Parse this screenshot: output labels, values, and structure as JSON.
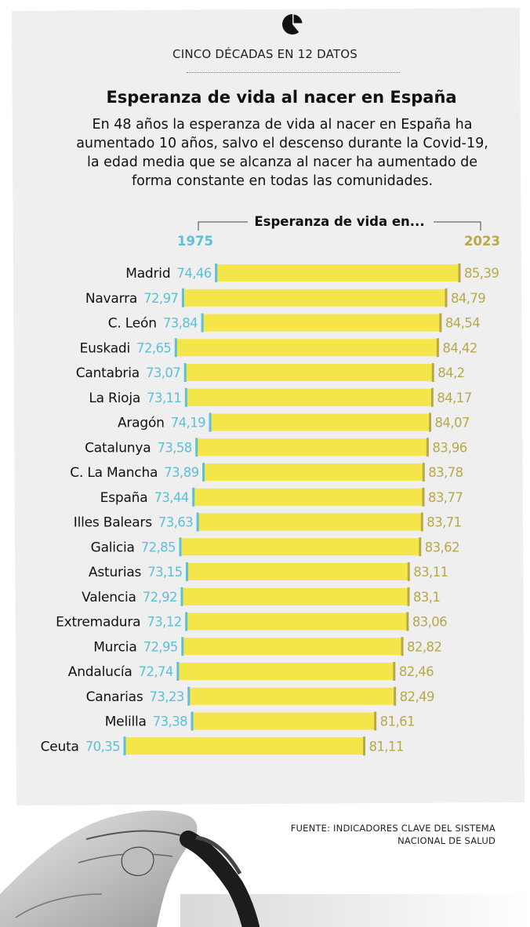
{
  "header": {
    "kicker": "CINCO DÉCADAS EN 12 DATOS",
    "title": "Esperanza de vida al nacer en España",
    "subtitle": "En 48 años la esperanza de vida al nacer en España ha aumentado 10 años, salvo el descenso durante la Covid-19, la edad media que se alcanza al nacer ha aumentado de forma constante en todas las comunidades."
  },
  "source": {
    "line1": "FUENTE: INDICADORES CLAVE DEL SISTEMA",
    "line2": "NACIONAL DE SALUD"
  },
  "colors": {
    "bar_fill": "#f3e54a",
    "start_marker": "#5cc0d8",
    "end_marker": "#b9a84a",
    "start_text": "#5cc0d8",
    "end_text": "#b9a84a",
    "label_text": "#111111"
  },
  "chart_data": {
    "type": "bar",
    "subtype": "range (dumbbell) bar",
    "title": "Esperanza de vida en...",
    "series": [
      {
        "name": "1975",
        "values": [
          74.46,
          72.97,
          73.84,
          72.65,
          73.07,
          73.11,
          74.19,
          73.58,
          73.89,
          73.44,
          73.63,
          72.85,
          73.15,
          72.92,
          73.12,
          72.95,
          72.74,
          73.23,
          73.38,
          70.35
        ]
      },
      {
        "name": "2023",
        "values": [
          85.39,
          84.79,
          84.54,
          84.42,
          84.2,
          84.17,
          84.07,
          83.96,
          83.78,
          83.77,
          83.71,
          83.62,
          83.11,
          83.1,
          83.06,
          82.82,
          82.46,
          82.49,
          81.61,
          81.11
        ]
      }
    ],
    "categories": [
      "Madrid",
      "Navarra",
      "C. León",
      "Euskadi",
      "Cantabria",
      "La Rioja",
      "Aragón",
      "Catalunya",
      "C. La Mancha",
      "España",
      "Illes Balears",
      "Galicia",
      "Asturias",
      "Valencia",
      "Extremadura",
      "Murcia",
      "Andalucía",
      "Canarias",
      "Melilla",
      "Ceuta"
    ],
    "start_labels": [
      "74,46",
      "72,97",
      "73,84",
      "72,65",
      "73,07",
      "73,11",
      "74,19",
      "73,58",
      "73,89",
      "73,44",
      "73,63",
      "72,85",
      "73,15",
      "72,92",
      "73,12",
      "72,95",
      "72,74",
      "73,23",
      "73,38",
      "70,35"
    ],
    "end_labels": [
      "85,39",
      "84,79",
      "84,54",
      "84,42",
      "84,2",
      "84,17",
      "84,07",
      "83,96",
      "83,78",
      "83,77",
      "83,71",
      "83,62",
      "83,11",
      "83,1",
      "83,06",
      "82,82",
      "82,46",
      "82,49",
      "81,61",
      "81,11"
    ],
    "xlim": [
      70.35,
      85.39
    ],
    "grid": false,
    "legend": "top"
  }
}
